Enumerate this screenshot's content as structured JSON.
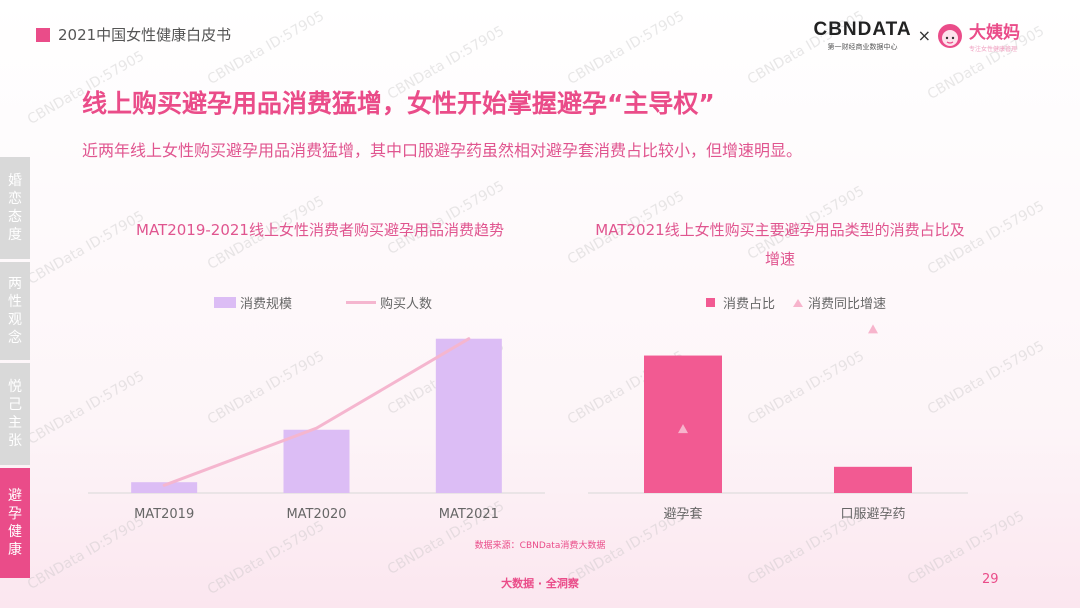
{
  "header": {
    "title": "2021中国女性健康白皮书"
  },
  "logos": {
    "cbn": "CBNDATA",
    "cbn_sub": "第一财经商业数据中心",
    "times": "×",
    "partner": "大姨妈",
    "partner_sub": "专注女性健康管理"
  },
  "main_title": "线上购买避孕用品消费猛增，女性开始掌握避孕“主导权”",
  "subtitle": "近两年线上女性购买避孕用品消费猛增，其中口服避孕药虽然相对避孕套消费占比较小，但增速明显。",
  "side_tabs": [
    "婚恋态度",
    "两性观念",
    "悦己主张",
    "避孕健康"
  ],
  "colors": {
    "accent": "#ea4c89",
    "bar_left": "#dcbdf5",
    "line_left": "#f5b6cf",
    "bar_right": "#f25a92",
    "triangle_right": "#f7b4cc"
  },
  "chart_data": [
    {
      "type": "bar",
      "title": "MAT2019-2021线上女性消费者购买避孕用品消费趋势",
      "categories": [
        "MAT2019",
        "MAT2020",
        "MAT2021"
      ],
      "series": [
        {
          "name": "消费规模",
          "kind": "bar",
          "values": [
            0.07,
            0.41,
            1.0
          ]
        },
        {
          "name": "购买人数",
          "kind": "line",
          "values": [
            0.05,
            0.42,
            1.0
          ]
        }
      ],
      "ylim": [
        0,
        1.05
      ],
      "grid": false,
      "legend": "top"
    },
    {
      "type": "bar",
      "title": "MAT2021线上女性购买主要避孕用品类型的消费占比及增速",
      "categories": [
        "避孕套",
        "口服避孕药"
      ],
      "series": [
        {
          "name": "消费占比",
          "kind": "bar",
          "values": [
            0.84,
            0.16
          ]
        },
        {
          "name": "消费同比增速",
          "kind": "marker",
          "values": [
            0.39,
            1.0
          ]
        }
      ],
      "ylim": [
        0,
        1.1
      ],
      "grid": false,
      "legend": "top"
    }
  ],
  "source": "数据来源：CBNData消费大数据",
  "footer": {
    "slogan": "大数据 · 全洞察",
    "page": "29"
  },
  "watermark": "CBNData ID:57905"
}
